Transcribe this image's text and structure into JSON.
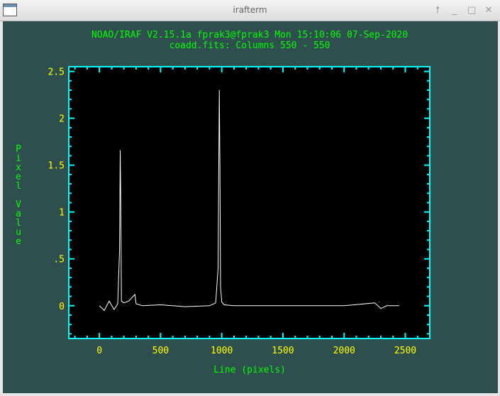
{
  "window": {
    "title": "irafterm",
    "buttons": [
      {
        "name": "pin-button",
        "glyph": "🠕"
      },
      {
        "name": "minimize-button",
        "glyph": "_"
      },
      {
        "name": "maximize-button",
        "glyph": "□"
      },
      {
        "name": "close-button",
        "glyph": "✕"
      }
    ]
  },
  "plot": {
    "header_line1": "NOAO/IRAF V2.15.1a fprak3@fprak3 Mon 15:10:06 07-Sep-2020",
    "header_line2": "coadd.fits: Columns 550 - 550",
    "colors": {
      "background": "#2f4f4f",
      "header": "#00ff00",
      "frame": "#00ffff",
      "ticklabel": "#ffff00",
      "trace": "#ffffff",
      "plotbg": "#000000"
    }
  },
  "chart_data": {
    "type": "line",
    "xlabel": "Line (pixels)",
    "ylabel": "Pixel Value",
    "xlim": [
      -250,
      2700
    ],
    "ylim": [
      -0.35,
      2.55
    ],
    "x_ticks": [
      0,
      500,
      1000,
      1500,
      2000,
      2500
    ],
    "x_tick_labels": [
      "0",
      "500",
      "1000",
      "1500",
      "2000",
      "2500"
    ],
    "y_ticks": [
      0,
      0.5,
      1,
      1.5,
      2,
      2.5
    ],
    "y_tick_labels": [
      "0",
      ".5",
      "1",
      "1.5",
      "2",
      "2.5"
    ],
    "grid": false,
    "series": [
      {
        "x": [
          0,
          40,
          80,
          120,
          150,
          165,
          170,
          175,
          180,
          200,
          240,
          290,
          300,
          350,
          500,
          700,
          900,
          950,
          970,
          980,
          985,
          990,
          1000,
          1020,
          1100,
          1500,
          2000,
          2250,
          2300,
          2350,
          2450
        ],
        "y": [
          0.0,
          -0.05,
          0.05,
          -0.04,
          0.02,
          0.6,
          1.66,
          1.1,
          0.05,
          0.03,
          0.05,
          0.12,
          0.02,
          0.0,
          0.01,
          -0.01,
          0.0,
          0.03,
          0.4,
          2.3,
          1.5,
          0.2,
          0.04,
          0.01,
          0.0,
          0.0,
          0.0,
          0.03,
          -0.03,
          0.0,
          0.0
        ]
      }
    ]
  }
}
